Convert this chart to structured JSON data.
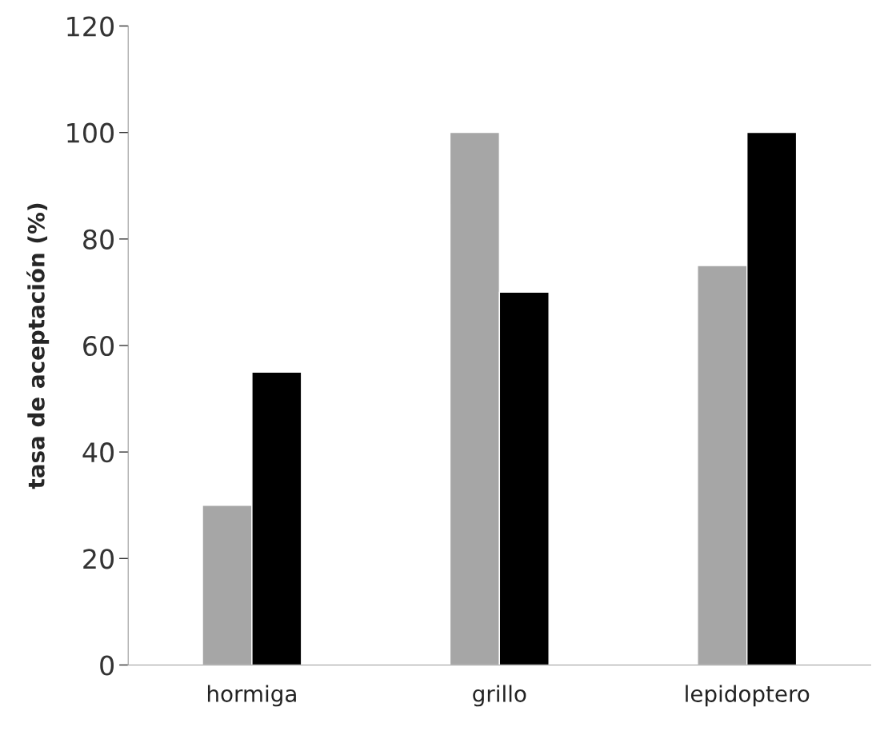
{
  "chart_data": {
    "type": "bar",
    "ylabel": "tasa de aceptación (%)",
    "categories": [
      "hormiga",
      "grillo",
      "lepidoptero"
    ],
    "series": [
      {
        "color": "#a6a6a6",
        "values": [
          30,
          100,
          75
        ]
      },
      {
        "color": "#000000",
        "values": [
          55,
          70,
          100
        ]
      }
    ],
    "ylim": [
      0,
      120
    ],
    "yticks": [
      0,
      20,
      40,
      60,
      80,
      100,
      120
    ],
    "grid": false
  }
}
